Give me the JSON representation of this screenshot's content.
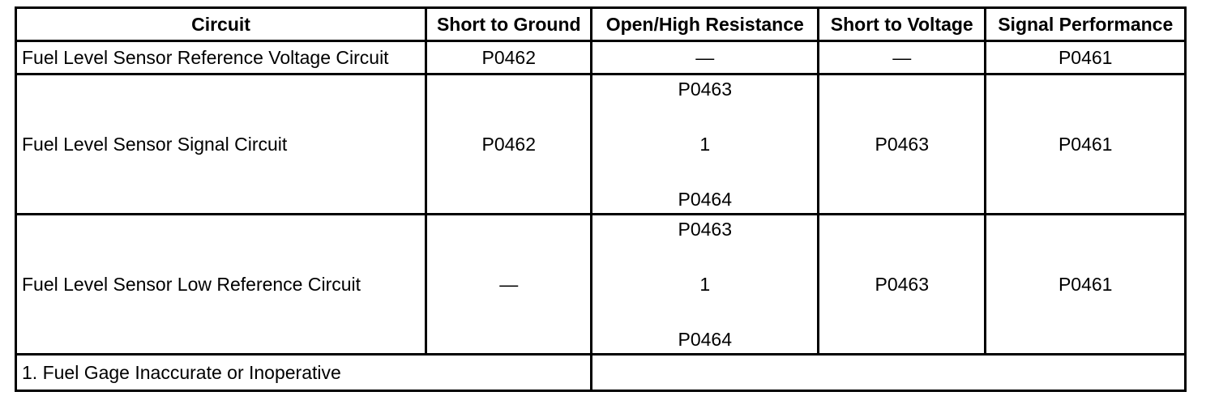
{
  "headers": {
    "circuit": "Circuit",
    "short_to_ground": "Short to Ground",
    "open_high_resistance": "Open/High Resistance",
    "short_to_voltage": "Short to Voltage",
    "signal_performance": "Signal Performance"
  },
  "rows": [
    {
      "circuit": "Fuel Level Sensor Reference Voltage Circuit",
      "short_to_ground": "P0462",
      "open_high_resistance": "—",
      "short_to_voltage": "—",
      "signal_performance": "P0461"
    },
    {
      "circuit": "Fuel Level Sensor Signal Circuit",
      "short_to_ground": "P0462",
      "open_high_resistance": [
        "P0463",
        "1",
        "P0464"
      ],
      "short_to_voltage": "P0463",
      "signal_performance": "P0461"
    },
    {
      "circuit": "Fuel Level Sensor Low Reference Circuit",
      "short_to_ground": "—",
      "open_high_resistance": [
        "P0463",
        "1",
        "P0464"
      ],
      "short_to_voltage": "P0463",
      "signal_performance": "P0461"
    }
  ],
  "footnote": "1. Fuel Gage Inaccurate or Inoperative"
}
